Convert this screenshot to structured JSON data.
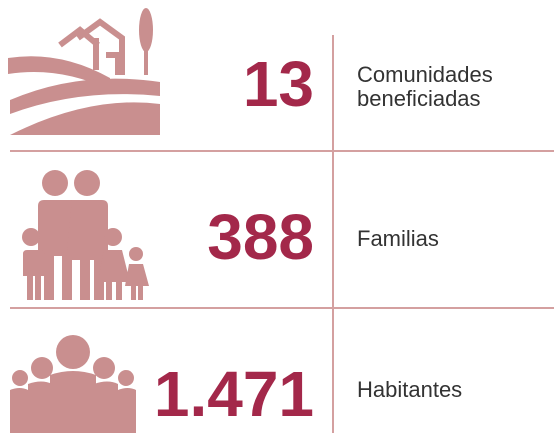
{
  "rows": [
    {
      "number": "13",
      "label": [
        "Comunidades",
        "beneficiadas"
      ]
    },
    {
      "number": "388",
      "label": [
        "Familias"
      ]
    },
    {
      "number": "1.471",
      "label": [
        "Habitantes"
      ]
    }
  ]
}
